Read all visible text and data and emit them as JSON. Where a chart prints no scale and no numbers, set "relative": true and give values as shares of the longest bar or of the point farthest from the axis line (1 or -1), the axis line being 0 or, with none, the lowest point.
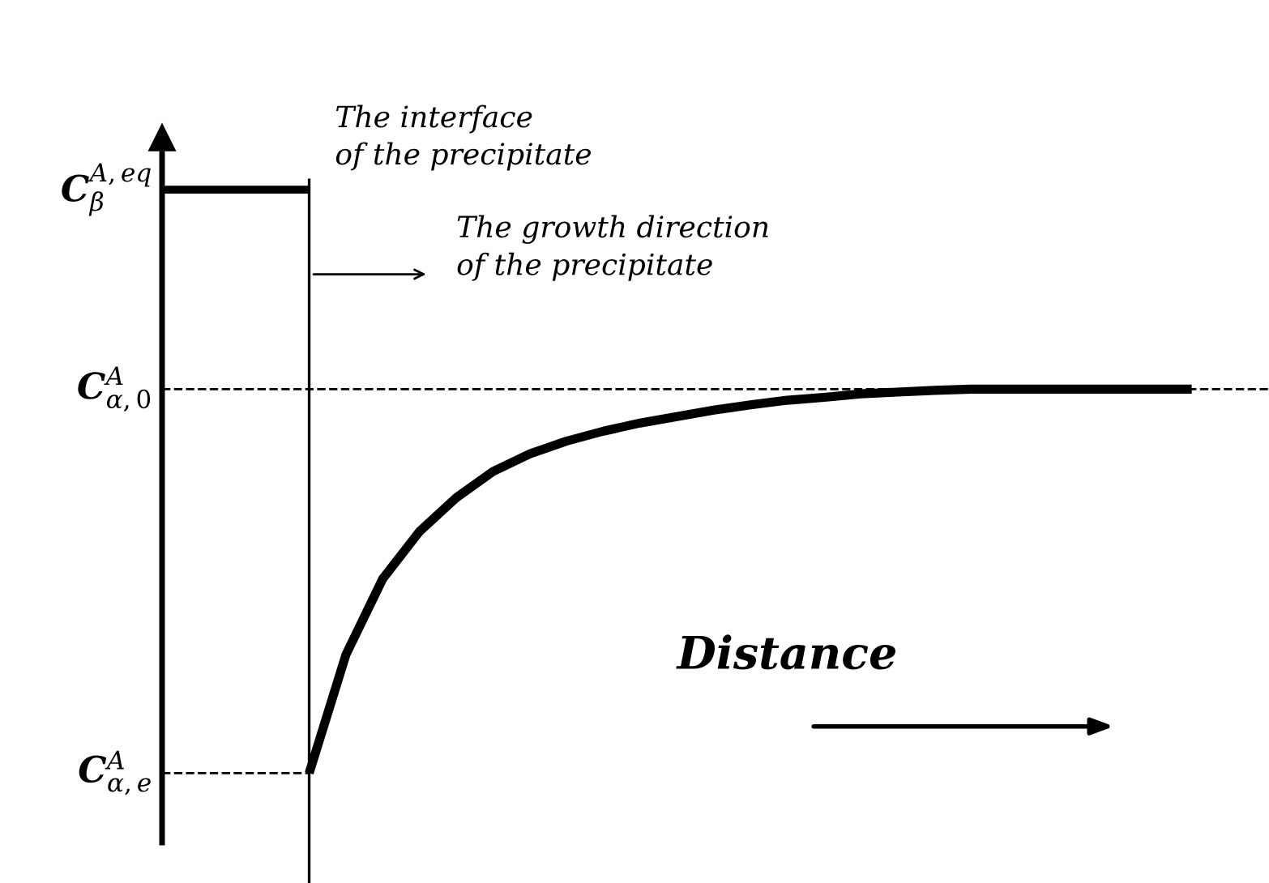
{
  "chart_data": {
    "type": "line",
    "relative": true,
    "categories": [
      null,
      null,
      null,
      null,
      null,
      null,
      null,
      null,
      null,
      null,
      null,
      null,
      null,
      null,
      null,
      null,
      null,
      null,
      null,
      null,
      null,
      null,
      null,
      null,
      null,
      null,
      null,
      null,
      null
    ],
    "series": [
      {
        "color": "#000000",
        "values": [
          null,
          null,
          null,
          null,
          0,
          0.203,
          0.333,
          0.414,
          0.472,
          0.517,
          0.547,
          0.569,
          0.586,
          0.6,
          0.611,
          0.622,
          0.631,
          0.639,
          0.644,
          0.65,
          0.653,
          0.656,
          0.658,
          0.658,
          0.658,
          0.658,
          0.658,
          0.658,
          0.658
        ]
      },
      {
        "name": "C$^{A,eq}$$_{β}$",
        "color": "#000000",
        "values": [
          1,
          1,
          1,
          1,
          1,
          null,
          null,
          null,
          null,
          null,
          null,
          null,
          null,
          null,
          null,
          null,
          null,
          null,
          null,
          null,
          null,
          null,
          null,
          null,
          null,
          null,
          null,
          null,
          null
        ]
      }
    ],
    "ref_lines": [
      {
        "axis": "y",
        "value": 0.658,
        "label": "C$^{A}$$_{α,0}$",
        "line_style": "dashed",
        "color": "#000000"
      },
      {
        "axis": "y",
        "value": 0,
        "label": "C$^{A}$$_{α,e}$",
        "line_style": "dashed",
        "color": "#000000"
      }
    ],
    "annotations": [
      "The interface\nof the precipitate",
      "The growth direction\nof the precipitate",
      "Distance"
    ],
    "line_style": "solid"
  }
}
